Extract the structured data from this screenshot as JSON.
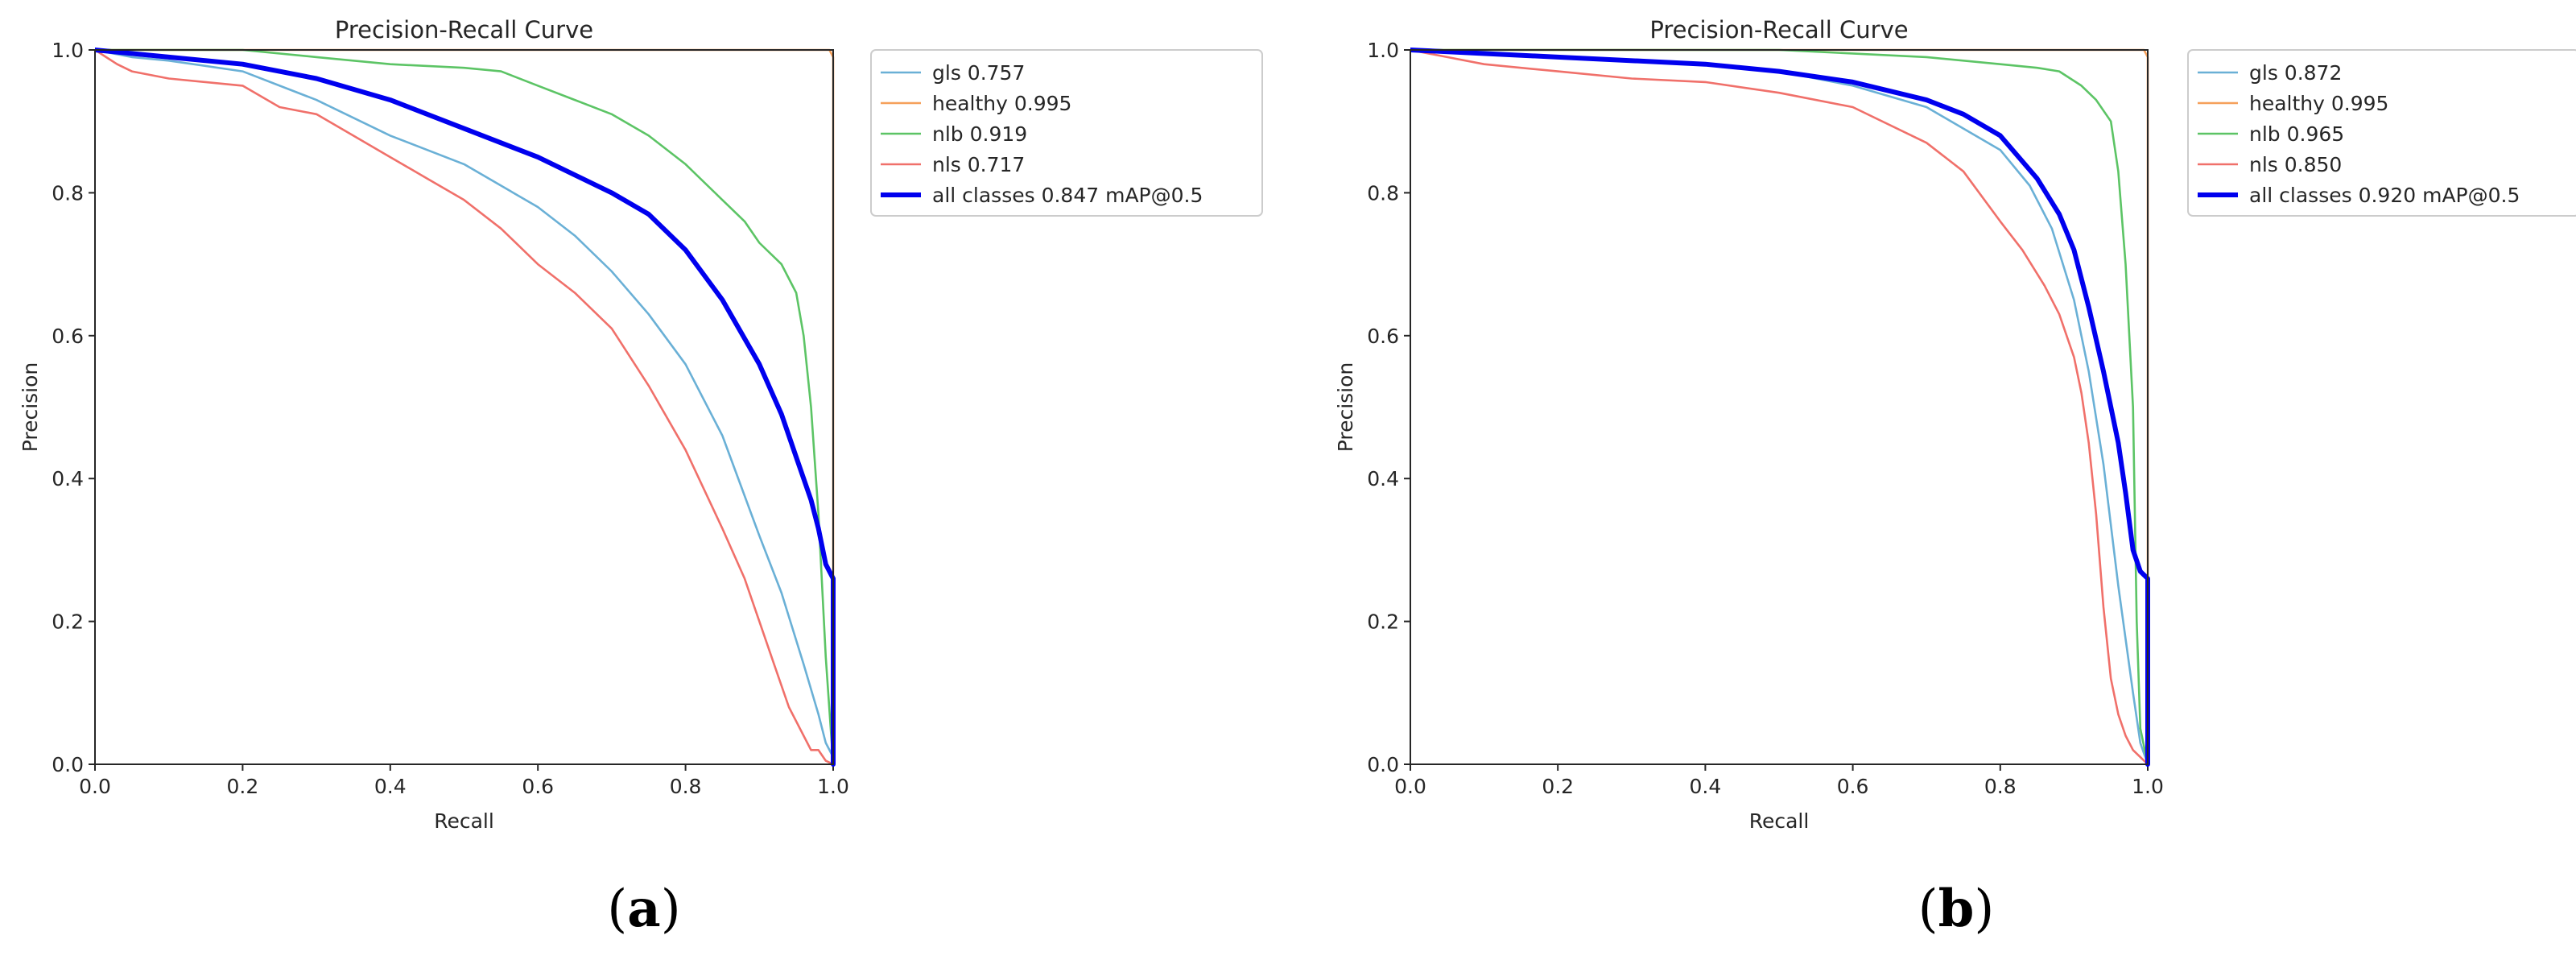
{
  "chart_data": [
    {
      "type": "line",
      "title": "Precision-Recall Curve",
      "xlabel": "Recall",
      "ylabel": "Precision",
      "xlim": [
        0,
        1
      ],
      "ylim": [
        0,
        1
      ],
      "xticks": [
        "0.0",
        "0.2",
        "0.4",
        "0.6",
        "0.8",
        "1.0"
      ],
      "yticks": [
        "0.0",
        "0.2",
        "0.4",
        "0.6",
        "0.8",
        "1.0"
      ],
      "legend_position": "outside-right-top",
      "caption_letter": "a",
      "series": [
        {
          "name": "gls 0.757",
          "color": "#6ab0d6",
          "width": 2.6,
          "x": [
            0,
            0.05,
            0.1,
            0.2,
            0.3,
            0.4,
            0.5,
            0.6,
            0.65,
            0.7,
            0.75,
            0.8,
            0.85,
            0.9,
            0.93,
            0.96,
            0.98,
            0.99,
            1.0,
            1.0
          ],
          "y": [
            1.0,
            0.99,
            0.985,
            0.97,
            0.93,
            0.88,
            0.84,
            0.78,
            0.74,
            0.69,
            0.63,
            0.56,
            0.46,
            0.32,
            0.24,
            0.14,
            0.07,
            0.03,
            0.01,
            0
          ]
        },
        {
          "name": "healthy 0.995",
          "color": "#f5a05a",
          "width": 2.6,
          "x": [
            0,
            0.99,
            0.995,
            1.0,
            1.0
          ],
          "y": [
            1.0,
            1.0,
            1.0,
            0.99,
            0
          ]
        },
        {
          "name": "nlb 0.919",
          "color": "#5cc465",
          "width": 2.6,
          "x": [
            0,
            0.2,
            0.3,
            0.4,
            0.5,
            0.55,
            0.6,
            0.65,
            0.7,
            0.75,
            0.8,
            0.85,
            0.88,
            0.9,
            0.93,
            0.95,
            0.96,
            0.97,
            0.98,
            0.99,
            1.0
          ],
          "y": [
            1.0,
            1.0,
            0.99,
            0.98,
            0.975,
            0.97,
            0.95,
            0.93,
            0.91,
            0.88,
            0.84,
            0.79,
            0.76,
            0.73,
            0.7,
            0.66,
            0.6,
            0.5,
            0.35,
            0.15,
            0
          ]
        },
        {
          "name": "nls 0.717",
          "color": "#f0706a",
          "width": 2.6,
          "x": [
            0,
            0.03,
            0.05,
            0.1,
            0.2,
            0.25,
            0.3,
            0.35,
            0.4,
            0.45,
            0.5,
            0.55,
            0.6,
            0.65,
            0.7,
            0.75,
            0.8,
            0.85,
            0.88,
            0.9,
            0.92,
            0.94,
            0.96,
            0.97,
            0.98,
            0.99,
            1.0
          ],
          "y": [
            1.0,
            0.98,
            0.97,
            0.96,
            0.95,
            0.92,
            0.91,
            0.88,
            0.85,
            0.82,
            0.79,
            0.75,
            0.7,
            0.66,
            0.61,
            0.53,
            0.44,
            0.33,
            0.26,
            0.2,
            0.14,
            0.08,
            0.04,
            0.02,
            0.02,
            0.005,
            0
          ]
        },
        {
          "name": "all classes 0.847 mAP@0.5",
          "color": "#0000ee",
          "width": 6,
          "x": [
            0,
            0.1,
            0.2,
            0.3,
            0.4,
            0.5,
            0.6,
            0.7,
            0.75,
            0.8,
            0.85,
            0.9,
            0.93,
            0.95,
            0.97,
            0.98,
            0.99,
            1.0,
            1.0
          ],
          "y": [
            1.0,
            0.99,
            0.98,
            0.96,
            0.93,
            0.89,
            0.85,
            0.8,
            0.77,
            0.72,
            0.65,
            0.56,
            0.49,
            0.43,
            0.37,
            0.33,
            0.28,
            0.26,
            0
          ]
        }
      ]
    },
    {
      "type": "line",
      "title": "Precision-Recall Curve",
      "xlabel": "Recall",
      "ylabel": "Precision",
      "xlim": [
        0,
        1
      ],
      "ylim": [
        0,
        1
      ],
      "xticks": [
        "0.0",
        "0.2",
        "0.4",
        "0.6",
        "0.8",
        "1.0"
      ],
      "yticks": [
        "0.0",
        "0.2",
        "0.4",
        "0.6",
        "0.8",
        "1.0"
      ],
      "legend_position": "outside-right-top",
      "caption_letter": "b",
      "series": [
        {
          "name": "gls 0.872",
          "color": "#6ab0d6",
          "width": 2.6,
          "x": [
            0,
            0.2,
            0.4,
            0.5,
            0.6,
            0.7,
            0.75,
            0.8,
            0.84,
            0.87,
            0.9,
            0.92,
            0.94,
            0.96,
            0.98,
            0.99,
            1.0
          ],
          "y": [
            1.0,
            0.99,
            0.98,
            0.97,
            0.95,
            0.92,
            0.89,
            0.86,
            0.81,
            0.75,
            0.65,
            0.55,
            0.42,
            0.25,
            0.1,
            0.03,
            0
          ]
        },
        {
          "name": "healthy 0.995",
          "color": "#f5a05a",
          "width": 2.6,
          "x": [
            0,
            0.995,
            1.0,
            1.0
          ],
          "y": [
            1.0,
            1.0,
            0.99,
            0
          ]
        },
        {
          "name": "nlb 0.965",
          "color": "#5cc465",
          "width": 2.6,
          "x": [
            0,
            0.5,
            0.7,
            0.8,
            0.85,
            0.88,
            0.91,
            0.93,
            0.95,
            0.96,
            0.97,
            0.98,
            0.985,
            0.99,
            1.0
          ],
          "y": [
            1.0,
            1.0,
            0.99,
            0.98,
            0.975,
            0.97,
            0.95,
            0.93,
            0.9,
            0.83,
            0.7,
            0.5,
            0.2,
            0.05,
            0
          ]
        },
        {
          "name": "nls 0.850",
          "color": "#f0706a",
          "width": 2.6,
          "x": [
            0,
            0.05,
            0.1,
            0.2,
            0.3,
            0.4,
            0.5,
            0.6,
            0.7,
            0.75,
            0.8,
            0.83,
            0.86,
            0.88,
            0.9,
            0.91,
            0.92,
            0.93,
            0.94,
            0.95,
            0.96,
            0.97,
            0.98,
            0.99,
            1.0
          ],
          "y": [
            1.0,
            0.99,
            0.98,
            0.97,
            0.96,
            0.955,
            0.94,
            0.92,
            0.87,
            0.83,
            0.76,
            0.72,
            0.67,
            0.63,
            0.57,
            0.52,
            0.45,
            0.35,
            0.22,
            0.12,
            0.07,
            0.04,
            0.02,
            0.01,
            0
          ]
        },
        {
          "name": "all classes 0.920 mAP@0.5",
          "color": "#0000ee",
          "width": 6,
          "x": [
            0,
            0.2,
            0.4,
            0.5,
            0.6,
            0.7,
            0.75,
            0.8,
            0.85,
            0.88,
            0.9,
            0.92,
            0.94,
            0.96,
            0.97,
            0.98,
            0.99,
            1.0,
            1.0
          ],
          "y": [
            1.0,
            0.99,
            0.98,
            0.97,
            0.955,
            0.93,
            0.91,
            0.88,
            0.82,
            0.77,
            0.72,
            0.64,
            0.55,
            0.45,
            0.38,
            0.3,
            0.27,
            0.26,
            0
          ]
        }
      ]
    }
  ]
}
